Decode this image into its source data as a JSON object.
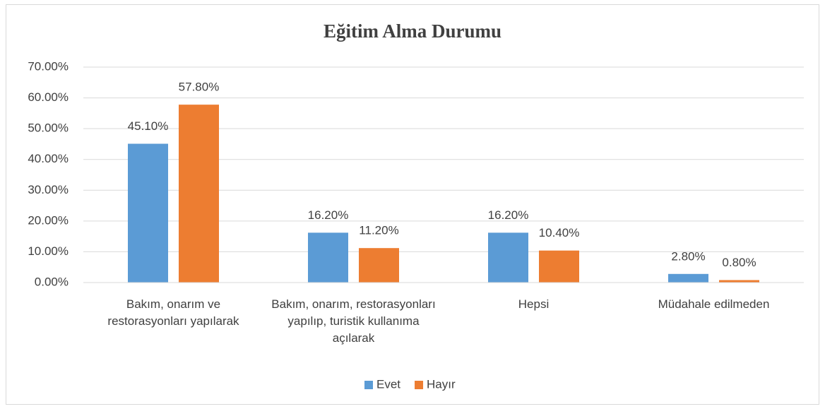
{
  "chart_data": {
    "type": "bar",
    "title": "Eğitim Alma Durumu",
    "categories": [
      "Bakım, onarım ve restorasyonları yapılarak",
      "Bakım, onarım, restorasyonları yapılıp, turistik kullanıma açılarak",
      "Hepsi",
      "Müdahale edilmeden"
    ],
    "series": [
      {
        "name": "Evet",
        "color": "#5b9bd5",
        "values": [
          45.1,
          16.2,
          16.2,
          2.8
        ],
        "value_labels": [
          "45.10%",
          "16.20%",
          "16.20%",
          "2.80%"
        ]
      },
      {
        "name": "Hayır",
        "color": "#ed7d31",
        "values": [
          57.8,
          11.2,
          10.4,
          0.8
        ],
        "value_labels": [
          "57.80%",
          "11.20%",
          "10.40%",
          "0.80%"
        ]
      }
    ],
    "ylim": [
      0,
      70
    ],
    "yticks": [
      {
        "value": 0,
        "label": "0.00%"
      },
      {
        "value": 10,
        "label": "10.00%"
      },
      {
        "value": 20,
        "label": "20.00%"
      },
      {
        "value": 30,
        "label": "30.00%"
      },
      {
        "value": 40,
        "label": "40.00%"
      },
      {
        "value": 50,
        "label": "50.00%"
      },
      {
        "value": 60,
        "label": "60.00%"
      },
      {
        "value": 70,
        "label": "70.00%"
      }
    ],
    "grid": true,
    "legend": "bottom"
  }
}
